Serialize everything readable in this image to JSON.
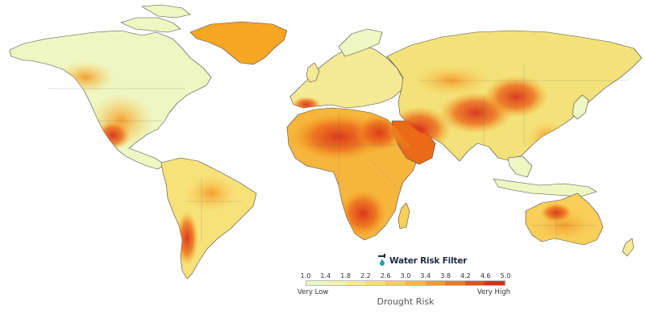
{
  "map": {
    "subject": "World map of drought risk by region",
    "colors": {
      "very_low": "#e9f5bf",
      "low": "#f2ed9a",
      "mid": "#f8cf58",
      "elevated": "#f5a623",
      "high": "#ea6a18",
      "very_high": "#d22b1a",
      "border": "#4a4a4a",
      "ocean": "#ffffff"
    }
  },
  "brand": {
    "name": "Water Risk Filter",
    "icon": "water-drop-tap-icon"
  },
  "legend": {
    "title": "Drought Risk",
    "ticks": [
      "1.0",
      "1.4",
      "1.8",
      "2.2",
      "2.6",
      "3.0",
      "3.4",
      "3.8",
      "4.2",
      "4.6",
      "5.0"
    ],
    "segment_colors": [
      "#eaf6c4",
      "#f1f3ae",
      "#f5ec8d",
      "#f7df6d",
      "#f8cd55",
      "#f6b63e",
      "#f29a2e",
      "#ec7a22",
      "#e2521b",
      "#d42f1a"
    ],
    "low_label": "Very Low",
    "high_label": "Very High"
  }
}
